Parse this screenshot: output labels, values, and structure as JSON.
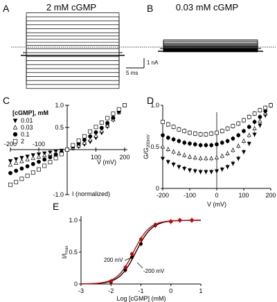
{
  "panels": {
    "A": {
      "letter": "A",
      "label": "2 mM cGMP"
    },
    "B": {
      "letter": "B",
      "label": "0.03 mM cGMP"
    },
    "C": {
      "letter": "C"
    },
    "D": {
      "letter": "D"
    },
    "E": {
      "letter": "E"
    }
  },
  "scale_bar": {
    "current": "1 nA",
    "time": "5 ms"
  },
  "colors": {
    "black": "#000000",
    "red": "#cc0000",
    "gray": "#888888"
  },
  "chart_data": [
    {
      "panel": "A",
      "type": "line",
      "title": "2 mM cGMP",
      "description_units": "current traces, voltage steps -200..200 mV",
      "num_traces": 21,
      "steady_levels_nA": [
        2.5,
        2.25,
        2.0,
        1.75,
        1.5,
        1.25,
        1.05,
        0.85,
        0.65,
        0.45,
        0.25,
        0.0,
        -0.25,
        -0.5,
        -0.75,
        -1.0,
        -1.25,
        -1.5,
        -1.75,
        -2.0,
        -2.25
      ],
      "duration_ms": 15
    },
    {
      "panel": "B",
      "type": "line",
      "title": "0.03 mM cGMP",
      "num_traces": 21,
      "steady_levels_nA": [
        0.95,
        0.85,
        0.72,
        0.6,
        0.5,
        0.4,
        0.32,
        0.25,
        0.18,
        0.12,
        0.06,
        0.0,
        -0.05,
        -0.1,
        -0.14,
        -0.18,
        -0.22,
        -0.26,
        -0.3,
        -0.34,
        -0.38
      ],
      "duration_ms": 15
    },
    {
      "panel": "C",
      "type": "scatter",
      "legend_title": "[cGMP], mM",
      "xlabel": "V (mV)",
      "ylabel": "I (normalized)",
      "xlim": [
        -200,
        200
      ],
      "ylim": [
        -1.0,
        1.0
      ],
      "x_ticks": [
        -200,
        -100,
        100,
        200
      ],
      "y_ticks": [
        -1.0,
        0.5,
        1.0
      ],
      "x_tick_labels": [
        "-200",
        "-100",
        "100",
        "200"
      ],
      "y_tick_labels": [
        "-1.0",
        "0.5",
        "1.0"
      ],
      "legend_placement": "upper-left",
      "series": [
        {
          "name": "0.01",
          "marker": "triangle-down",
          "fill": "black",
          "x": [
            -200,
            -180,
            -160,
            -140,
            -120,
            -100,
            -80,
            -60,
            -40,
            -20,
            0,
            20,
            40,
            60,
            80,
            100,
            120,
            140,
            160,
            180,
            200
          ],
          "y": [
            -0.25,
            -0.21,
            -0.18,
            -0.15,
            -0.12,
            -0.1,
            -0.08,
            -0.06,
            -0.04,
            -0.02,
            0,
            0.03,
            0.07,
            0.12,
            0.18,
            0.27,
            0.38,
            0.52,
            0.67,
            0.84,
            1.0
          ]
        },
        {
          "name": "0.03",
          "marker": "triangle-up",
          "fill": "white",
          "x": [
            -200,
            -180,
            -160,
            -140,
            -120,
            -100,
            -80,
            -60,
            -40,
            -20,
            0,
            20,
            40,
            60,
            80,
            100,
            120,
            140,
            160,
            180,
            200
          ],
          "y": [
            -0.34,
            -0.3,
            -0.26,
            -0.22,
            -0.19,
            -0.16,
            -0.13,
            -0.1,
            -0.07,
            -0.035,
            0,
            0.04,
            0.09,
            0.15,
            0.22,
            0.31,
            0.42,
            0.54,
            0.68,
            0.84,
            1.0
          ]
        },
        {
          "name": "0.1",
          "marker": "circle",
          "fill": "black",
          "x": [
            -200,
            -180,
            -160,
            -140,
            -120,
            -100,
            -80,
            -60,
            -40,
            -20,
            0,
            20,
            40,
            60,
            80,
            100,
            120,
            140,
            160,
            180,
            200
          ],
          "y": [
            -0.52,
            -0.47,
            -0.42,
            -0.37,
            -0.32,
            -0.27,
            -0.22,
            -0.17,
            -0.11,
            -0.06,
            0,
            0.07,
            0.14,
            0.22,
            0.3,
            0.39,
            0.49,
            0.6,
            0.72,
            0.86,
            1.0
          ]
        },
        {
          "name": "2",
          "marker": "square",
          "fill": "white",
          "x": [
            -200,
            -180,
            -160,
            -140,
            -120,
            -100,
            -80,
            -60,
            -40,
            -20,
            0,
            20,
            40,
            60,
            80,
            100,
            120,
            140,
            160,
            180,
            200
          ],
          "y": [
            -0.78,
            -0.72,
            -0.65,
            -0.58,
            -0.51,
            -0.44,
            -0.36,
            -0.28,
            -0.19,
            -0.1,
            0,
            0.1,
            0.2,
            0.3,
            0.41,
            0.51,
            0.61,
            0.71,
            0.81,
            0.91,
            1.0
          ]
        }
      ]
    },
    {
      "panel": "D",
      "type": "scatter",
      "xlabel": "V (mV)",
      "ylabel": "G/G200mV",
      "ylabel_main": "G/G",
      "ylabel_sub": "200mV",
      "xlim": [
        -200,
        200
      ],
      "ylim": [
        0,
        1.0
      ],
      "x_ticks": [
        -200,
        -100,
        0,
        100,
        200
      ],
      "y_ticks": [
        0,
        0.5,
        1.0
      ],
      "x_tick_labels": [
        "-200",
        "-100",
        "0",
        "100",
        "200"
      ],
      "y_tick_labels": [
        "0",
        "0.5",
        "1.0"
      ],
      "series": [
        {
          "name": "0.01",
          "marker": "triangle-down",
          "fill": "black",
          "x": [
            -200,
            -180,
            -160,
            -140,
            -120,
            -100,
            -80,
            -60,
            -40,
            -20,
            0,
            20,
            40,
            60,
            80,
            100,
            120,
            140,
            160,
            180,
            200
          ],
          "y": [
            0.36,
            0.32,
            0.29,
            0.26,
            0.24,
            0.22,
            0.21,
            0.2,
            0.2,
            0.2,
            0.21,
            0.23,
            0.26,
            0.3,
            0.36,
            0.44,
            0.54,
            0.65,
            0.76,
            0.88,
            1.0
          ]
        },
        {
          "name": "0.03",
          "marker": "triangle-up",
          "fill": "white",
          "x": [
            -200,
            -180,
            -160,
            -140,
            -120,
            -100,
            -80,
            -60,
            -40,
            -20,
            0,
            20,
            40,
            60,
            80,
            100,
            120,
            140,
            160,
            180,
            200
          ],
          "y": [
            0.5,
            0.47,
            0.44,
            0.42,
            0.4,
            0.38,
            0.37,
            0.36,
            0.36,
            0.36,
            0.37,
            0.39,
            0.42,
            0.46,
            0.51,
            0.57,
            0.64,
            0.72,
            0.81,
            0.9,
            1.0
          ]
        },
        {
          "name": "0.1",
          "marker": "circle",
          "fill": "black",
          "x": [
            -200,
            -180,
            -160,
            -140,
            -120,
            -100,
            -80,
            -60,
            -40,
            -20,
            0,
            20,
            40,
            60,
            80,
            100,
            120,
            140,
            160,
            180,
            200
          ],
          "y": [
            0.64,
            0.61,
            0.59,
            0.57,
            0.55,
            0.54,
            0.53,
            0.52,
            0.52,
            0.52,
            0.53,
            0.55,
            0.57,
            0.6,
            0.64,
            0.69,
            0.74,
            0.8,
            0.86,
            0.93,
            1.0
          ]
        },
        {
          "name": "2",
          "marker": "square",
          "fill": "white",
          "x": [
            -200,
            -180,
            -160,
            -140,
            -120,
            -100,
            -80,
            -60,
            -40,
            -20,
            0,
            20,
            40,
            60,
            80,
            100,
            120,
            140,
            160,
            180,
            200
          ],
          "y": [
            0.8,
            0.77,
            0.74,
            0.71,
            0.69,
            0.67,
            0.66,
            0.65,
            0.65,
            0.66,
            0.67,
            0.69,
            0.72,
            0.75,
            0.78,
            0.82,
            0.86,
            0.9,
            0.94,
            0.97,
            1.0
          ]
        }
      ]
    },
    {
      "panel": "E",
      "type": "scatter",
      "xlabel": "Log [cGMP] (mM)",
      "ylabel": "I/Imax",
      "ylabel_main": "I/I",
      "ylabel_sub": "max",
      "xlim": [
        -3,
        1
      ],
      "ylim": [
        0,
        1.0
      ],
      "x_ticks": [
        -3,
        -2,
        -1,
        0,
        1
      ],
      "y_ticks": [
        0,
        0.5,
        1.0
      ],
      "x_tick_labels": [
        "-3",
        "-2",
        "-1",
        "0",
        "1"
      ],
      "y_tick_labels": [
        "0",
        "0.5",
        "1.0"
      ],
      "annotations": [
        "200 mV",
        "-200 mV"
      ],
      "series": [
        {
          "name": "200 mV",
          "color": "#000000",
          "marker": "circle",
          "x": [
            -2.0,
            -1.52,
            -1.3,
            -1.0,
            -0.52,
            0.0,
            0.3,
            0.7
          ],
          "y": [
            0.03,
            0.22,
            0.42,
            0.63,
            0.92,
            0.98,
            1.0,
            1.0
          ],
          "fit_ec50_log": -1.17,
          "fit_hill": 1.6
        },
        {
          "name": "-200 mV",
          "color": "#cc0000",
          "marker": "circle",
          "x": [
            -2.0,
            -1.52,
            -1.3,
            -1.0,
            -0.52,
            0.0,
            0.3,
            0.7
          ],
          "y": [
            0.04,
            0.26,
            0.47,
            0.7,
            0.93,
            0.98,
            1.0,
            1.0
          ],
          "fit_ec50_log": -1.25,
          "fit_hill": 1.6
        }
      ]
    }
  ]
}
